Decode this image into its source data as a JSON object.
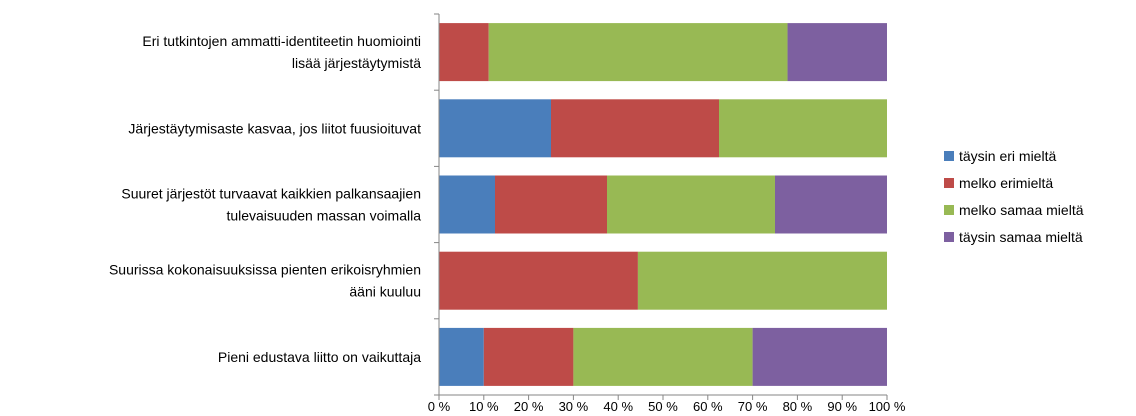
{
  "chart_data": {
    "type": "bar",
    "orientation": "horizontal",
    "stacked": true,
    "percent_stacked": true,
    "categories": [
      [
        "Eri tutkintojen ammatti-identiteetin huomiointi",
        "lisää järjestäytymistä"
      ],
      [
        "Järjestäytymisaste kasvaa, jos liitot fuusioituvat"
      ],
      [
        "Suuret järjestöt turvaavat kaikkien palkansaajien",
        "tulevaisuuden massan voimalla"
      ],
      [
        "Suurissa kokonaisuuksissa pienten erikoisryhmien",
        "ääni kuuluu"
      ],
      [
        "Pieni edustava liitto on vaikuttaja"
      ]
    ],
    "series": [
      {
        "name": "täysin eri mieltä",
        "color": "#4a7ebb",
        "values": [
          0,
          25,
          12.5,
          0,
          10
        ]
      },
      {
        "name": "melko erimieltä",
        "color": "#be4b48",
        "values": [
          11.1,
          37.5,
          25,
          44.4,
          20
        ]
      },
      {
        "name": "melko samaa mieltä",
        "color": "#98b954",
        "values": [
          66.7,
          37.5,
          37.5,
          55.6,
          40
        ]
      },
      {
        "name": "täysin samaa mieltä",
        "color": "#7d60a0",
        "values": [
          22.2,
          0,
          25,
          0,
          30
        ]
      }
    ],
    "xlim": [
      0,
      100
    ],
    "xticks": [
      "0 %",
      "10 %",
      "20 %",
      "30 %",
      "40 %",
      "50 %",
      "60 %",
      "70 %",
      "80 %",
      "90 %",
      "100 %"
    ],
    "title": "",
    "xlabel": "",
    "ylabel": "",
    "grid": false,
    "legend": "right"
  }
}
